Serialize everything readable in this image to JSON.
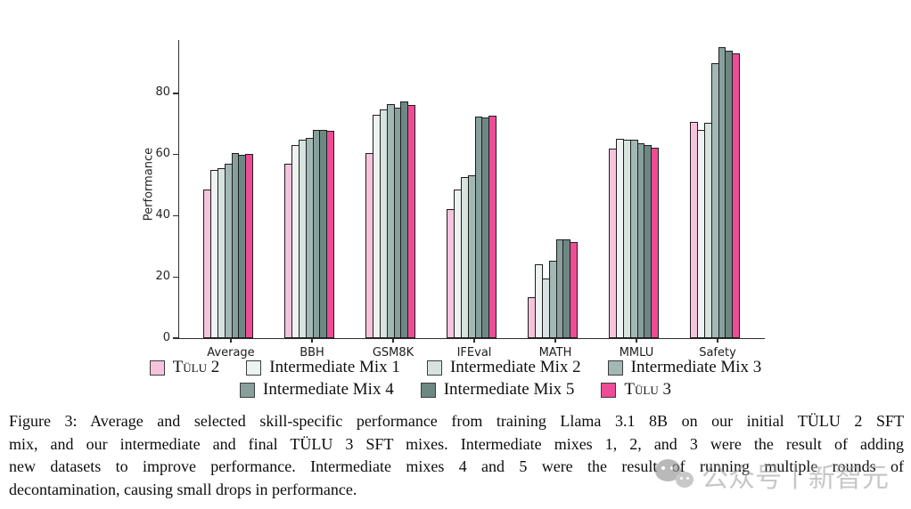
{
  "figure": {
    "caption_lines": [
      "Figure 3: Average and selected skill-specific performance from training Llama 3.1 8B on our initial TÜLU 2 SFT",
      "mix, and our intermediate and final TÜLU 3 SFT mixes. Intermediate mixes 1, 2, and 3 were the result of adding",
      "new datasets to improve performance. Intermediate mixes 4 and 5 were the result of running multiple rounds of",
      "decontamination, causing small drops in performance."
    ]
  },
  "watermark": {
    "icon": "wechat-icon",
    "text": "公众号丨新智元"
  },
  "chart_data": {
    "type": "bar",
    "title": "",
    "xlabel": "",
    "ylabel": "Performance",
    "ylim": [
      0,
      97.4
    ],
    "yticks": [
      0,
      20,
      40,
      60,
      80
    ],
    "grid": false,
    "legend_position": "bottom",
    "categories": [
      "Average",
      "BBH",
      "GSM8K",
      "IFEval",
      "MATH",
      "MMLU",
      "Safety"
    ],
    "series": [
      {
        "name": "Tülu 2",
        "color": "#f5c3dc",
        "values": [
          48.5,
          57.0,
          60.4,
          42.3,
          13.5,
          61.8,
          70.7
        ]
      },
      {
        "name": "Intermediate Mix 1",
        "color": "#eef2f0",
        "values": [
          55.1,
          63.2,
          73.0,
          48.5,
          24.0,
          65.0,
          68.1
        ]
      },
      {
        "name": "Intermediate Mix 2",
        "color": "#d7e3df",
        "values": [
          55.4,
          64.8,
          74.6,
          52.7,
          19.5,
          64.9,
          70.3
        ]
      },
      {
        "name": "Intermediate Mix 3",
        "color": "#a2b8b4",
        "values": [
          56.9,
          65.4,
          76.6,
          53.1,
          25.3,
          64.8,
          89.9
        ]
      },
      {
        "name": "Intermediate Mix 4",
        "color": "#87a09b",
        "values": [
          60.5,
          67.9,
          75.2,
          72.4,
          32.3,
          63.6,
          95.2
        ]
      },
      {
        "name": "Intermediate Mix 5",
        "color": "#6d8883",
        "values": [
          60.0,
          67.9,
          77.4,
          72.0,
          32.2,
          63.2,
          93.9
        ]
      },
      {
        "name": "Tülu 3",
        "color": "#ee4c95",
        "values": [
          60.1,
          67.8,
          76.2,
          72.8,
          31.5,
          62.1,
          93.1
        ]
      }
    ],
    "legend_rows": [
      [
        "Tülu 2",
        "Intermediate Mix 1",
        "Intermediate Mix 2",
        "Intermediate Mix 3"
      ],
      [
        "Intermediate Mix 4",
        "Intermediate Mix 5",
        "Tülu 3"
      ]
    ]
  }
}
